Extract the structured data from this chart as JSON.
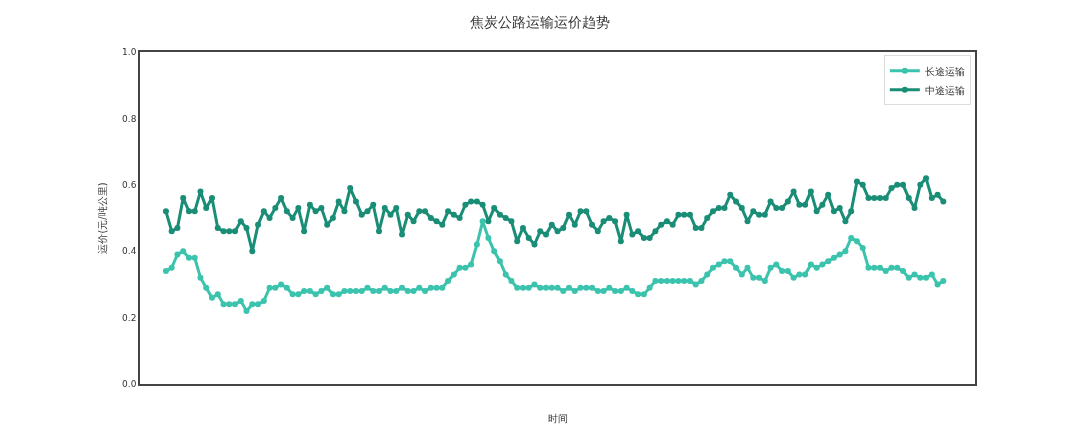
{
  "chart_data": {
    "type": "line",
    "title": "焦炭公路运输运价趋势",
    "xlabel": "时间",
    "ylabel": "运价(元/吨公里)",
    "categories": [
      null,
      null,
      null,
      null,
      null,
      null,
      null,
      null,
      null,
      null,
      null,
      null,
      null,
      null,
      null,
      null,
      null,
      null,
      null,
      null,
      null,
      null,
      null,
      null,
      null,
      null,
      null,
      null,
      null,
      null,
      null,
      null,
      null,
      null,
      null,
      null,
      null,
      null,
      null,
      null,
      null,
      null,
      null,
      null,
      null,
      null,
      null,
      null,
      null,
      null,
      null,
      null,
      null,
      null,
      null,
      null,
      null,
      null,
      null,
      null,
      null,
      null,
      null,
      null,
      null,
      null,
      null,
      null,
      null,
      null,
      null,
      null,
      null,
      null,
      null,
      null,
      null,
      null,
      null,
      null,
      null,
      null,
      null,
      null,
      null,
      null,
      null,
      null,
      null,
      null,
      null,
      null,
      null,
      null,
      null,
      null,
      null,
      null,
      null,
      null,
      null,
      null,
      null,
      null,
      null,
      null,
      null,
      null,
      null,
      null,
      null,
      null,
      null,
      null,
      null,
      null,
      null,
      null,
      null,
      null,
      null,
      null,
      null,
      null,
      null,
      null,
      null,
      null,
      null,
      null,
      null,
      null,
      null,
      null,
      null,
      null
    ],
    "series": [
      {
        "name": "长途运输",
        "color": "#3cc3ad",
        "values": [
          0.34,
          0.35,
          0.39,
          0.4,
          0.38,
          0.38,
          0.32,
          0.29,
          0.26,
          0.27,
          0.24,
          0.24,
          0.24,
          0.25,
          0.22,
          0.24,
          0.24,
          0.25,
          0.29,
          0.29,
          0.3,
          0.29,
          0.27,
          0.27,
          0.28,
          0.28,
          0.27,
          0.28,
          0.29,
          0.27,
          0.27,
          0.28,
          0.28,
          0.28,
          0.28,
          0.29,
          0.28,
          0.28,
          0.29,
          0.28,
          0.28,
          0.29,
          0.28,
          0.28,
          0.29,
          0.28,
          0.29,
          0.29,
          0.29,
          0.31,
          0.33,
          0.35,
          0.35,
          0.36,
          0.42,
          0.49,
          0.44,
          0.4,
          0.37,
          0.33,
          0.31,
          0.29,
          0.29,
          0.29,
          0.3,
          0.29,
          0.29,
          0.29,
          0.29,
          0.28,
          0.29,
          0.28,
          0.29,
          0.29,
          0.29,
          0.28,
          0.28,
          0.29,
          0.28,
          0.28,
          0.29,
          0.28,
          0.27,
          0.27,
          0.29,
          0.31,
          0.31,
          0.31,
          0.31,
          0.31,
          0.31,
          0.31,
          0.3,
          0.31,
          0.33,
          0.35,
          0.36,
          0.37,
          0.37,
          0.35,
          0.33,
          0.35,
          0.32,
          0.32,
          0.31,
          0.35,
          0.36,
          0.34,
          0.34,
          0.32,
          0.33,
          0.33,
          0.36,
          0.35,
          0.36,
          0.37,
          0.38,
          0.39,
          0.4,
          0.44,
          0.43,
          0.41,
          0.35,
          0.35,
          0.35,
          0.34,
          0.35,
          0.35,
          0.34,
          0.32,
          0.33,
          0.32,
          0.32,
          0.33,
          0.3,
          0.31
        ]
      },
      {
        "name": "中途运输",
        "color": "#1a8d77",
        "values": [
          0.52,
          0.46,
          0.47,
          0.56,
          0.52,
          0.52,
          0.58,
          0.53,
          0.56,
          0.47,
          0.46,
          0.46,
          0.46,
          0.49,
          0.47,
          0.4,
          0.48,
          0.52,
          0.5,
          0.53,
          0.56,
          0.52,
          0.5,
          0.53,
          0.46,
          0.54,
          0.52,
          0.53,
          0.48,
          0.5,
          0.55,
          0.52,
          0.59,
          0.55,
          0.51,
          0.52,
          0.54,
          0.46,
          0.53,
          0.51,
          0.53,
          0.45,
          0.51,
          0.49,
          0.52,
          0.52,
          0.5,
          0.49,
          0.48,
          0.52,
          0.51,
          0.5,
          0.54,
          0.55,
          0.55,
          0.54,
          0.49,
          0.53,
          0.51,
          0.5,
          0.49,
          0.43,
          0.47,
          0.44,
          0.42,
          0.46,
          0.45,
          0.48,
          0.46,
          0.47,
          0.51,
          0.48,
          0.52,
          0.52,
          0.48,
          0.46,
          0.49,
          0.5,
          0.49,
          0.43,
          0.51,
          0.45,
          0.46,
          0.44,
          0.44,
          0.46,
          0.48,
          0.49,
          0.48,
          0.51,
          0.51,
          0.51,
          0.47,
          0.47,
          0.5,
          0.52,
          0.53,
          0.53,
          0.57,
          0.55,
          0.53,
          0.49,
          0.52,
          0.51,
          0.51,
          0.55,
          0.53,
          0.53,
          0.55,
          0.58,
          0.54,
          0.54,
          0.58,
          0.52,
          0.54,
          0.57,
          0.52,
          0.53,
          0.49,
          0.52,
          0.61,
          0.6,
          0.56,
          0.56,
          0.56,
          0.56,
          0.59,
          0.6,
          0.6,
          0.56,
          0.53,
          0.6,
          0.62,
          0.56,
          0.57,
          0.55
        ]
      }
    ],
    "ylim": [
      0,
      1
    ],
    "yticks": [
      {
        "value": 0,
        "label": "0.0"
      },
      {
        "value": 0.2,
        "label": "0.2"
      },
      {
        "value": 0.4,
        "label": "0.4"
      },
      {
        "value": 0.6,
        "label": "0.6"
      },
      {
        "value": 0.8,
        "label": "0.8"
      },
      {
        "value": 1,
        "label": "1.0"
      }
    ],
    "legend": "top right",
    "marker": "circle",
    "line_style": "solid",
    "tick_labels": "y"
  }
}
